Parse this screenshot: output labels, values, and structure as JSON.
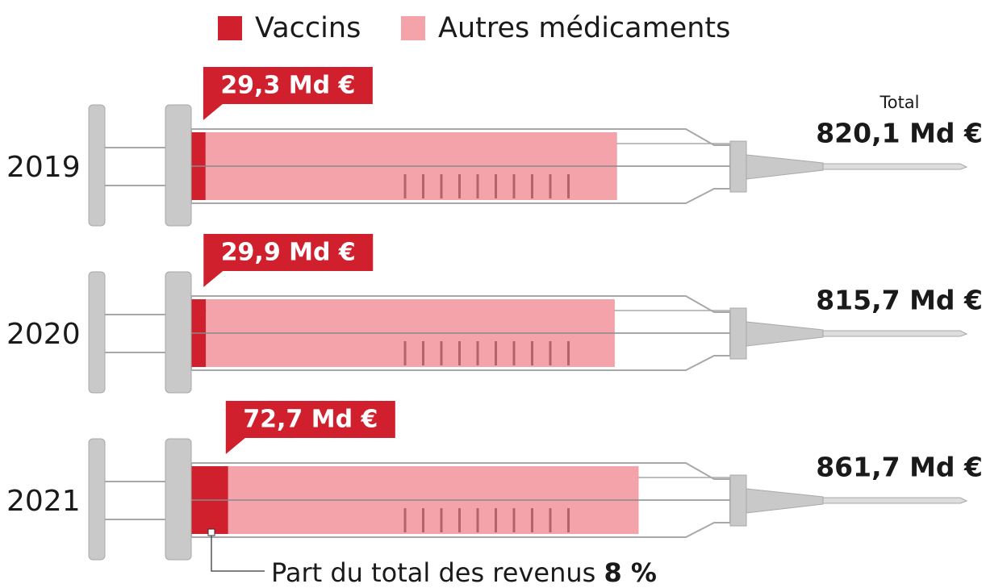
{
  "chart_data": {
    "type": "syringe-bar",
    "categories": [
      "2019",
      "2020",
      "2021"
    ],
    "series": [
      {
        "name": "Vaccins",
        "color": "#d0202e",
        "values": [
          29.3,
          29.9,
          72.7
        ],
        "value_labels": [
          "29,3 Md €",
          "29,9 Md €",
          "72,7 Md €"
        ]
      },
      {
        "name": "Autres médicaments",
        "color": "#f4a3ab",
        "values": [
          790.8,
          785.8,
          789.0
        ]
      }
    ],
    "totals": {
      "title": "Total",
      "values": [
        820.1,
        815.7,
        861.7
      ],
      "value_labels": [
        "820,1 Md €",
        "815,7 Md €",
        "861,7 Md €"
      ]
    },
    "annotation": {
      "text": "Part du total des revenus",
      "value_label": "8 %"
    }
  }
}
